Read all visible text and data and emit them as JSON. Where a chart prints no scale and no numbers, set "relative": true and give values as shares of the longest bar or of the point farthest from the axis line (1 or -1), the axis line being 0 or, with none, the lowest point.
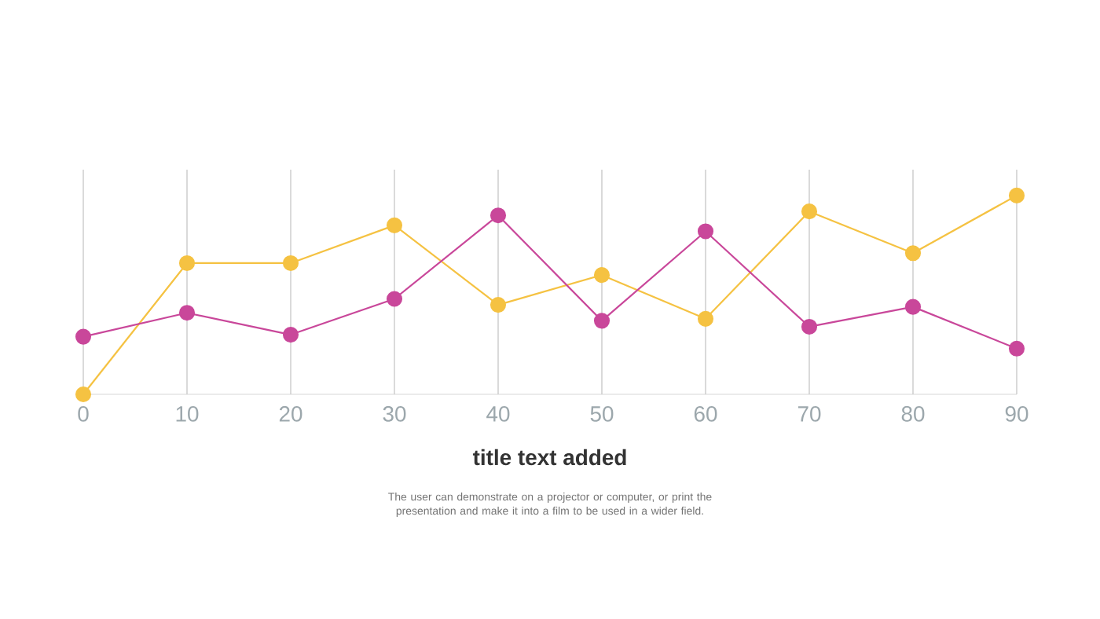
{
  "chart_data": {
    "type": "line",
    "title": "title text added",
    "annotations": [
      "The user can demonstrate on a projector or computer, or print the presentation and make it into a film to be used in a wider field."
    ],
    "x": [
      0,
      10,
      20,
      30,
      40,
      50,
      60,
      70,
      80,
      90
    ],
    "xlim": [
      0,
      90
    ],
    "xticks": [
      0,
      10,
      20,
      30,
      40,
      50,
      60,
      70,
      80,
      90
    ],
    "relative": true,
    "grid": "x",
    "marker": "circle",
    "line_style": "solid",
    "tick_labels": "x",
    "series": [
      {
        "color": "#f5c242",
        "values": [
          0,
          0.66,
          0.66,
          0.85,
          0.45,
          0.6,
          0.38,
          0.92,
          0.71,
          1
        ]
      },
      {
        "color": "#c9479a",
        "values": [
          0.29,
          0.41,
          0.3,
          0.48,
          0.9,
          0.37,
          0.82,
          0.34,
          0.44,
          0.23
        ]
      }
    ]
  }
}
